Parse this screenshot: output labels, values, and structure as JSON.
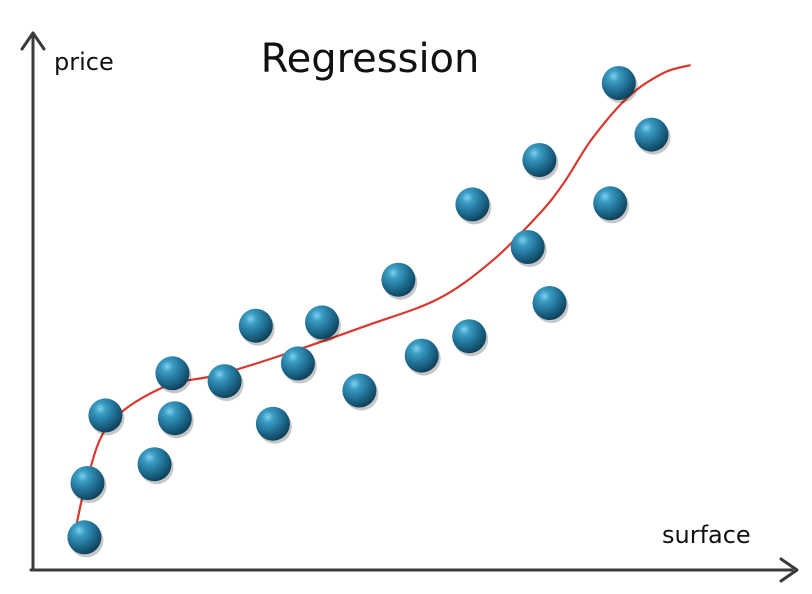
{
  "chart_data": {
    "type": "scatter",
    "title": "Regression",
    "xlabel": "surface",
    "ylabel": "price",
    "grid": false,
    "legend": "none",
    "xlim": [
      0,
      10
    ],
    "ylim": [
      0,
      10
    ],
    "series": [
      {
        "kind": "points",
        "color": "#1f6e92",
        "points": [
          {
            "x": 0.66,
            "y": 0.59
          },
          {
            "x": 0.7,
            "y": 1.57
          },
          {
            "x": 0.93,
            "y": 2.79
          },
          {
            "x": 1.56,
            "y": 1.91
          },
          {
            "x": 1.79,
            "y": 3.55
          },
          {
            "x": 1.82,
            "y": 2.74
          },
          {
            "x": 2.46,
            "y": 3.41
          },
          {
            "x": 2.86,
            "y": 4.41
          },
          {
            "x": 3.08,
            "y": 2.64
          },
          {
            "x": 3.4,
            "y": 3.73
          },
          {
            "x": 3.71,
            "y": 4.47
          },
          {
            "x": 4.19,
            "y": 3.24
          },
          {
            "x": 4.69,
            "y": 5.24
          },
          {
            "x": 4.99,
            "y": 3.87
          },
          {
            "x": 5.6,
            "y": 4.22
          },
          {
            "x": 5.64,
            "y": 6.6
          },
          {
            "x": 6.35,
            "y": 5.83
          },
          {
            "x": 6.5,
            "y": 7.4
          },
          {
            "x": 6.63,
            "y": 4.82
          },
          {
            "x": 7.41,
            "y": 6.62
          },
          {
            "x": 7.52,
            "y": 8.79
          },
          {
            "x": 7.94,
            "y": 7.86
          }
        ]
      },
      {
        "kind": "curve",
        "color": "#d63a2f",
        "points": [
          {
            "x": 0.55,
            "y": 0.75
          },
          {
            "x": 0.68,
            "y": 1.55
          },
          {
            "x": 0.97,
            "y": 2.62
          },
          {
            "x": 1.67,
            "y": 3.3
          },
          {
            "x": 2.37,
            "y": 3.52
          },
          {
            "x": 3.2,
            "y": 3.88
          },
          {
            "x": 4.28,
            "y": 4.41
          },
          {
            "x": 5.21,
            "y": 4.9
          },
          {
            "x": 5.91,
            "y": 5.6
          },
          {
            "x": 6.5,
            "y": 6.43
          },
          {
            "x": 6.82,
            "y": 7.0
          },
          {
            "x": 7.17,
            "y": 7.77
          },
          {
            "x": 7.64,
            "y": 8.54
          },
          {
            "x": 8.09,
            "y": 8.97
          },
          {
            "x": 8.43,
            "y": 9.11
          }
        ]
      }
    ]
  }
}
